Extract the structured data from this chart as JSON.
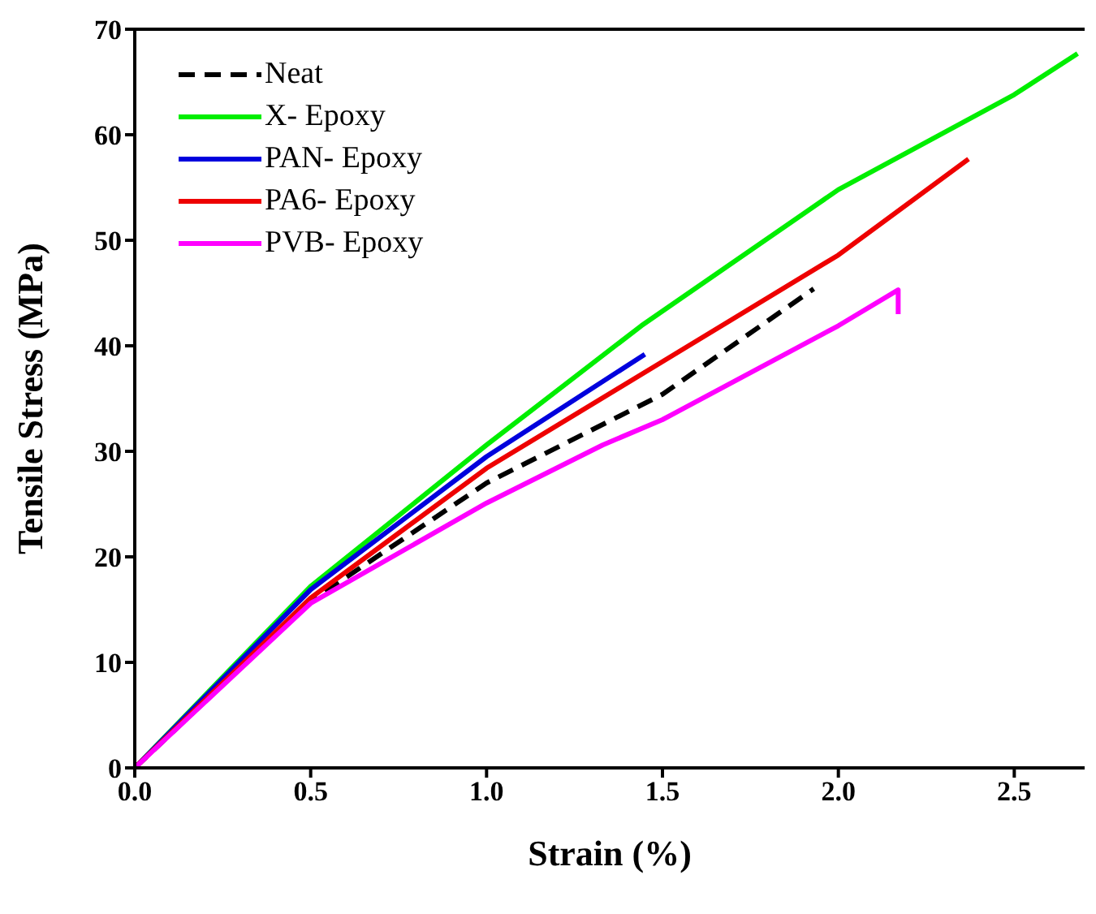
{
  "chart_data": {
    "type": "line",
    "xlabel": "Strain (%)",
    "ylabel": "Tensile Stress (MPa)",
    "xlim": [
      0,
      2.7
    ],
    "xticks": [
      {
        "value": 0,
        "label": "0.0"
      },
      {
        "value": 0.5,
        "label": "0.5"
      },
      {
        "value": 1,
        "label": "1.0"
      },
      {
        "value": 1.5,
        "label": "1.5"
      },
      {
        "value": 2,
        "label": "2.0"
      },
      {
        "value": 2.5,
        "label": "2.5"
      }
    ],
    "ylim": [
      0,
      70
    ],
    "yticks": [
      0,
      10,
      20,
      30,
      40,
      50,
      60,
      70
    ],
    "grid": false,
    "legend": "top left",
    "marker": "none",
    "series": [
      {
        "name": "Neat",
        "color": "#000000",
        "line_style": "dashed",
        "x": [
          0,
          0.5,
          1,
          1.5,
          1.93
        ],
        "values": [
          0,
          15.8,
          27,
          35.4,
          45.4
        ]
      },
      {
        "name": "X- Epoxy",
        "color": "#00ee00",
        "x": [
          0,
          0.5,
          1,
          1.44,
          2,
          2.5,
          2.68
        ],
        "values": [
          0,
          17.2,
          30.6,
          41.9,
          54.8,
          63.8,
          67.7
        ]
      },
      {
        "name": "PAN- Epoxy",
        "color": "#0000dd",
        "x": [
          0,
          0.5,
          1,
          1.45
        ],
        "values": [
          0,
          16.9,
          29.5,
          39.2
        ]
      },
      {
        "name": "PA6- Epoxy",
        "color": "#ee0000",
        "x": [
          0,
          0.5,
          1,
          1.5,
          2,
          2.37
        ],
        "values": [
          0,
          16.1,
          28.4,
          38.5,
          48.6,
          57.7
        ]
      },
      {
        "name": "PVB- Epoxy",
        "color": "#ff00ff",
        "x": [
          0,
          0.5,
          1,
          1.33,
          1.5,
          2,
          2.17,
          2.17
        ],
        "values": [
          0,
          15.6,
          25.1,
          30.6,
          33,
          41.9,
          45.3,
          43
        ]
      }
    ]
  }
}
